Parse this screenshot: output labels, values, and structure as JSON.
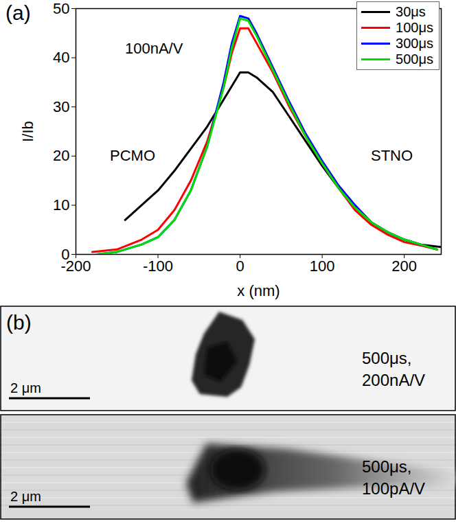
{
  "chart_data": {
    "type": "line",
    "x_label": "x (nm)",
    "y_label": "I/Ib",
    "annotations": [
      "(a)",
      "100nA/V",
      "PCMO",
      "STNO"
    ],
    "xlim": [
      -200,
      245
    ],
    "xticks": [
      -200,
      -100,
      0,
      100,
      200
    ],
    "ylim": [
      0,
      50
    ],
    "yticks": [
      0,
      10,
      20,
      30,
      40,
      50
    ],
    "legend": "top-right",
    "series": [
      {
        "name": "30μs",
        "color": "#000000",
        "x": [
          -140,
          -120,
          -100,
          -80,
          -60,
          -40,
          -20,
          0,
          10,
          20,
          40,
          60,
          80,
          100,
          120,
          140,
          160,
          180,
          200,
          220,
          245
        ],
        "values": [
          7,
          10,
          13,
          17,
          21.5,
          26,
          31.5,
          37,
          37,
          36,
          33,
          28,
          23,
          18,
          13.5,
          9.5,
          6.5,
          4.5,
          3,
          2,
          1.5
        ]
      },
      {
        "name": "100μs",
        "color": "#ff0000",
        "x": [
          -180,
          -150,
          -120,
          -100,
          -80,
          -60,
          -40,
          -20,
          -10,
          0,
          10,
          20,
          40,
          60,
          80,
          100,
          120,
          140,
          160,
          180,
          200,
          220,
          240
        ],
        "values": [
          0.5,
          1,
          3,
          5,
          9,
          15,
          23,
          34,
          41,
          46,
          46,
          43,
          37,
          30,
          24,
          18.5,
          13.5,
          9,
          6,
          4,
          2.5,
          1.8,
          1
        ]
      },
      {
        "name": "300μs",
        "color": "#0000ff",
        "x": [
          -175,
          -150,
          -120,
          -100,
          -80,
          -60,
          -40,
          -20,
          -10,
          0,
          10,
          20,
          40,
          60,
          80,
          100,
          120,
          140,
          160,
          180,
          200,
          220,
          240
        ],
        "values": [
          0,
          0.5,
          2,
          3.5,
          7,
          13,
          22,
          35,
          43,
          48.5,
          48,
          45,
          38,
          31,
          24.5,
          19,
          14,
          10,
          6.5,
          4.5,
          3,
          2,
          1
        ]
      },
      {
        "name": "500μs",
        "color": "#00e000",
        "x": [
          -175,
          -150,
          -120,
          -100,
          -80,
          -60,
          -40,
          -20,
          -10,
          0,
          10,
          20,
          40,
          60,
          80,
          100,
          120,
          140,
          160,
          180,
          200,
          220,
          240
        ],
        "values": [
          0,
          0.5,
          2,
          3.5,
          7,
          13,
          22,
          34,
          42,
          48,
          47.5,
          44.5,
          37.5,
          30.5,
          24,
          18.5,
          13.5,
          9.5,
          6.5,
          4.5,
          3,
          2,
          1
        ]
      }
    ]
  },
  "images": {
    "label": "(b)",
    "frames": [
      {
        "scale_bar": "2 μm",
        "caption": [
          "500μs,",
          "200nA/V"
        ]
      },
      {
        "scale_bar": "2 μm",
        "caption": [
          "500μs,",
          "100pA/V"
        ]
      }
    ]
  }
}
